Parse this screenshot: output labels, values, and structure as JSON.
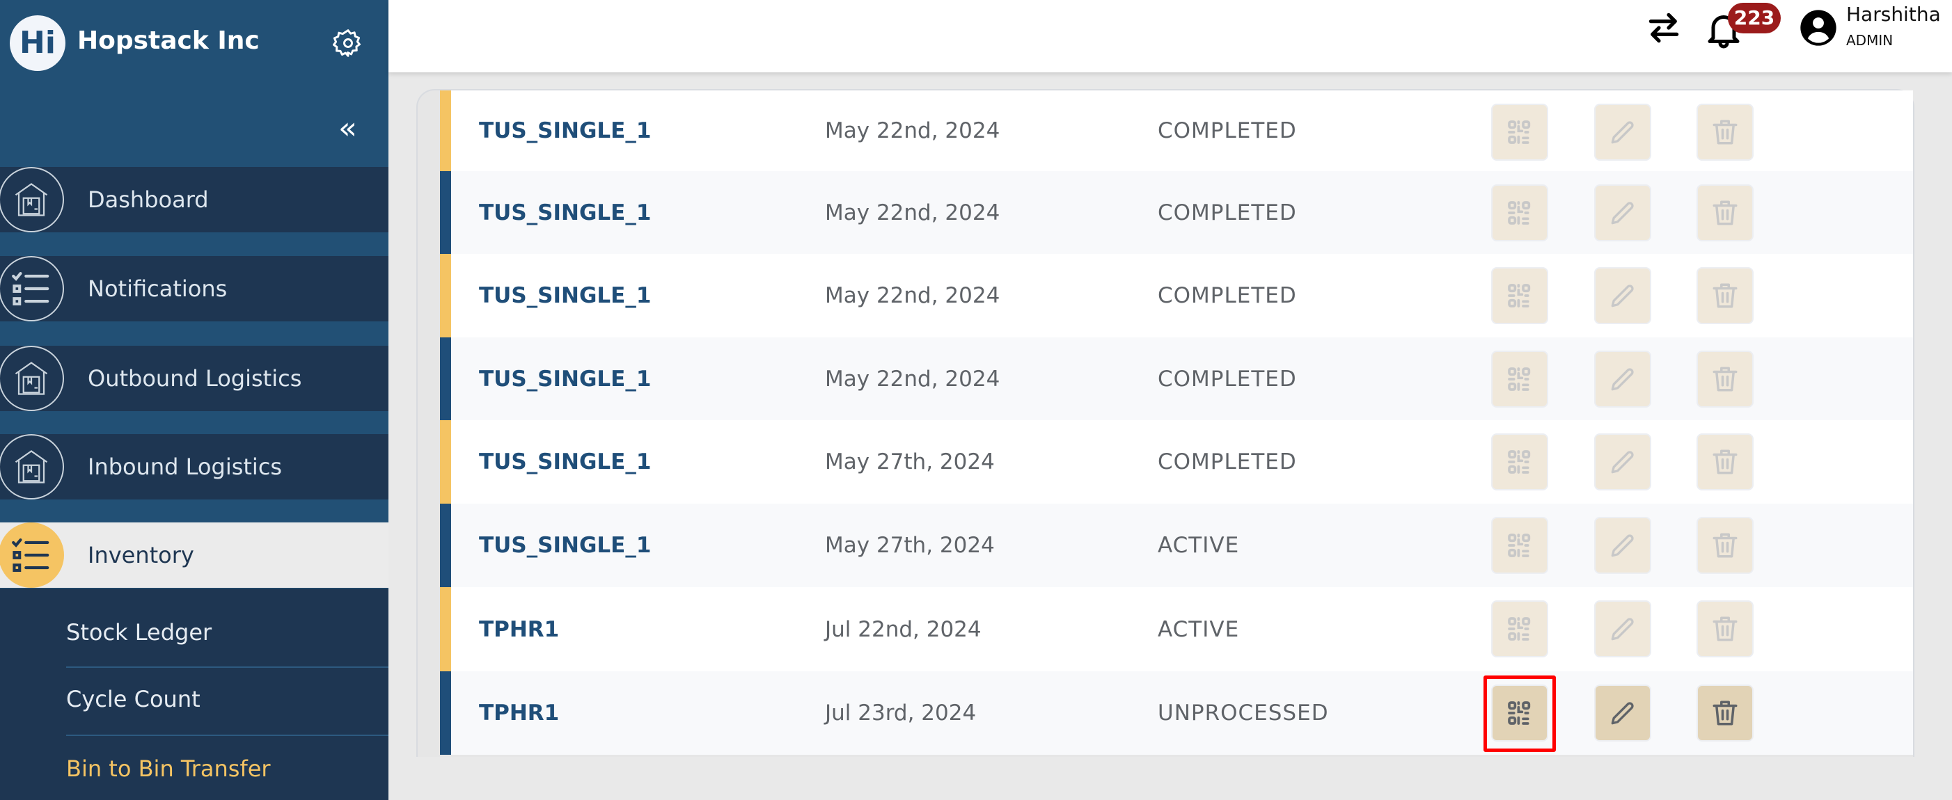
{
  "sidebar": {
    "logo_letter": "Hi",
    "brand": "Hopstack Inc",
    "collapse_icon": "«",
    "items": [
      {
        "label": "Dashboard",
        "icon": "warehouse-icon"
      },
      {
        "label": "Notifications",
        "icon": "checklist-icon"
      },
      {
        "label": "Outbound Logistics",
        "icon": "warehouse-icon"
      },
      {
        "label": "Inbound Logistics",
        "icon": "warehouse-icon"
      },
      {
        "label": "Inventory",
        "icon": "checklist-icon",
        "active": true
      }
    ],
    "subitems": [
      {
        "label": "Stock Ledger"
      },
      {
        "label": "Cycle Count"
      },
      {
        "label": "Bin to Bin Transfer",
        "active": true
      }
    ]
  },
  "header": {
    "notification_count": "223",
    "user_name": "Harshitha",
    "user_role": "ADMIN"
  },
  "colors": {
    "yellow_accent": "#f5c463",
    "navy_accent": "#1f4e79",
    "badge": "#9b1b1b",
    "highlight": "#ff0000"
  },
  "rows": [
    {
      "name": "TUS_SINGLE_1",
      "date": "May 22nd, 2024",
      "status": "COMPLETED",
      "accent": "#f5c463"
    },
    {
      "name": "TUS_SINGLE_1",
      "date": "May 22nd, 2024",
      "status": "COMPLETED",
      "accent": "#1f4e79"
    },
    {
      "name": "TUS_SINGLE_1",
      "date": "May 22nd, 2024",
      "status": "COMPLETED",
      "accent": "#f5c463"
    },
    {
      "name": "TUS_SINGLE_1",
      "date": "May 22nd, 2024",
      "status": "COMPLETED",
      "accent": "#1f4e79"
    },
    {
      "name": "TUS_SINGLE_1",
      "date": "May 27th, 2024",
      "status": "COMPLETED",
      "accent": "#f5c463"
    },
    {
      "name": "TUS_SINGLE_1",
      "date": "May 27th, 2024",
      "status": "ACTIVE",
      "accent": "#1f4e79"
    },
    {
      "name": "TPHR1",
      "date": "Jul 22nd, 2024",
      "status": "ACTIVE",
      "accent": "#f5c463"
    },
    {
      "name": "TPHR1",
      "date": "Jul 23rd, 2024",
      "status": "UNPROCESSED",
      "accent": "#1f4e79",
      "enabled": true
    }
  ]
}
